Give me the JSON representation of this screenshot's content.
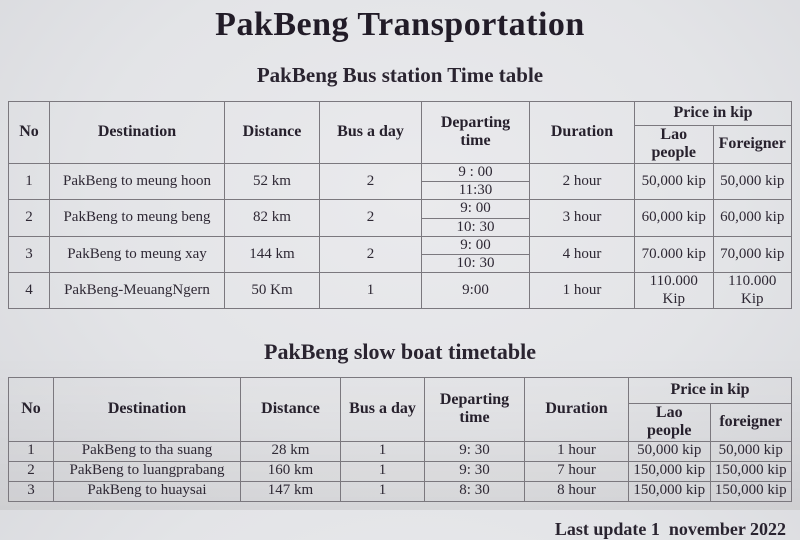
{
  "page": {
    "title": "PakBeng Transportation",
    "footer": "Last update 1  november 2022"
  },
  "colors": {
    "paper": "#e6e7ea",
    "ink": "#2b2531",
    "table_border": "#7b787e"
  },
  "bus": {
    "subtitle": "PakBeng Bus station Time table",
    "headers": {
      "no": "No",
      "destination": "Destination",
      "distance": "Distance",
      "bus_a_day": "Bus a day",
      "departing_time": "Departing time",
      "duration": "Duration",
      "price_group": "Price in kip",
      "lao_people": "Lao people",
      "foreigner": "Foreigner"
    },
    "rows": [
      {
        "no": "1",
        "destination": "PakBeng to meung hoon",
        "distance": "52 km",
        "bus_a_day": "2",
        "times": [
          "9 : 00",
          "11:30"
        ],
        "duration": "2 hour",
        "lao_price": "50,000 kip",
        "foreigner_price": "50,000 kip"
      },
      {
        "no": "2",
        "destination": "PakBeng to meung beng",
        "distance": "82 km",
        "bus_a_day": "2",
        "times": [
          "9: 00",
          "10: 30"
        ],
        "duration": "3 hour",
        "lao_price": "60,000 kip",
        "foreigner_price": "60,000 kip"
      },
      {
        "no": "3",
        "destination": "PakBeng to meung xay",
        "distance": "144 km",
        "bus_a_day": "2",
        "times": [
          "9: 00",
          "10: 30"
        ],
        "duration": "4 hour",
        "lao_price": "70.000 kip",
        "foreigner_price": "70,000 kip"
      },
      {
        "no": "4",
        "destination": "PakBeng-MeuangNgern",
        "distance": "50 Km",
        "bus_a_day": "1",
        "times": [
          "9:00"
        ],
        "duration": "1 hour",
        "lao_price": "110.000 Kip",
        "foreigner_price": "110.000 Kip"
      }
    ]
  },
  "boat": {
    "subtitle": "PakBeng slow boat timetable",
    "headers": {
      "no": "No",
      "destination": "Destination",
      "distance": "Distance",
      "bus_a_day": "Bus a day",
      "departing_time": "Departing time",
      "duration": "Duration",
      "price_group": "Price in kip",
      "lao_people": "Lao people",
      "foreigner": "foreigner"
    },
    "rows": [
      {
        "no": "1",
        "destination": "PakBeng to tha suang",
        "distance": "28 km",
        "bus_a_day": "1",
        "time": "9: 30",
        "duration": "1 hour",
        "lao_price": "50,000 kip",
        "foreigner_price": "50,000 kip"
      },
      {
        "no": "2",
        "destination": "PakBeng to luangprabang",
        "distance": "160 km",
        "bus_a_day": "1",
        "time": "9: 30",
        "duration": "7 hour",
        "lao_price": "150,000 kip",
        "foreigner_price": "150,000 kip"
      },
      {
        "no": "3",
        "destination": "PakBeng to huaysai",
        "distance": "147 km",
        "bus_a_day": "1",
        "time": "8: 30",
        "duration": "8 hour",
        "lao_price": "150,000 kip",
        "foreigner_price": "150,000 kip"
      }
    ]
  }
}
